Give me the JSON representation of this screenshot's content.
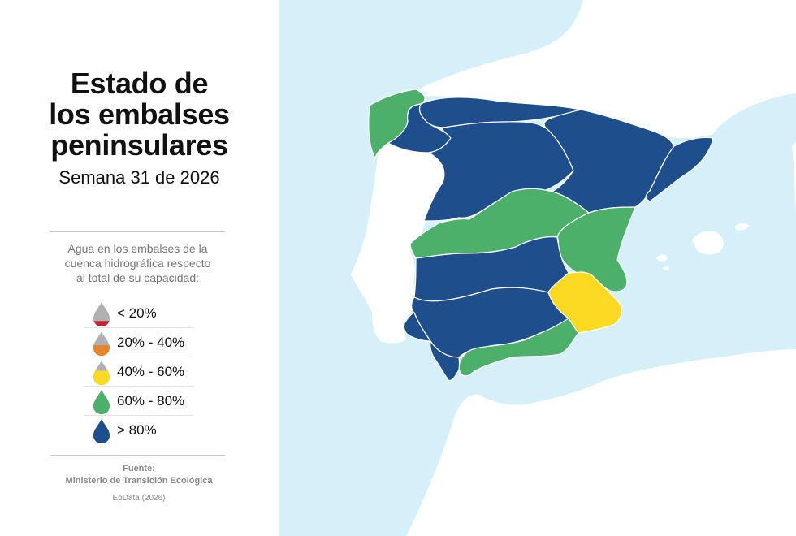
{
  "title_lines": [
    "Estado de",
    "los embalses",
    "peninsulares"
  ],
  "subtitle": "Semana 31 de 2026",
  "legend": {
    "description_lines": [
      "Agua en los embalses de la",
      "cuenca hidrográfica respecto",
      "al total de su capacidad:"
    ],
    "items": [
      {
        "label": "< 20%",
        "color": "#c0262c",
        "fill": 0.25
      },
      {
        "label": "20% - 40%",
        "color": "#e8842a",
        "fill": 0.45
      },
      {
        "label": "40% - 60%",
        "color": "#fcd922",
        "fill": 0.6
      },
      {
        "label": "60% - 80%",
        "color": "#4caf6a",
        "fill": 1.0
      },
      {
        "label": "> 80%",
        "color": "#1f4e8c",
        "fill": 1.0
      }
    ],
    "empty_color": "#b0b0b0"
  },
  "source": {
    "heading": "Fuente:",
    "name": "Ministerio de Transición Ecológica",
    "credit": "EpData (2026)"
  },
  "map": {
    "sea_color": "#d5f0f9",
    "neighbor_land_color": "#ffffff",
    "border_color": "#ffffff",
    "basins": [
      {
        "id": "galicia-costa",
        "category": "60% - 80%"
      },
      {
        "id": "cantabrico",
        "category": "> 80%"
      },
      {
        "id": "mino-sil",
        "category": "> 80%"
      },
      {
        "id": "duero",
        "category": "> 80%"
      },
      {
        "id": "ebro",
        "category": "> 80%"
      },
      {
        "id": "cuencas-internas-cataluna",
        "category": "> 80%"
      },
      {
        "id": "tajo",
        "category": "60% - 80%"
      },
      {
        "id": "jucar",
        "category": "60% - 80%"
      },
      {
        "id": "guadiana",
        "category": "> 80%"
      },
      {
        "id": "segura",
        "category": "40% - 60%"
      },
      {
        "id": "guadalquivir",
        "category": "> 80%"
      },
      {
        "id": "cuencas-mediterraneas-andaluzas",
        "category": "60% - 80%"
      },
      {
        "id": "tinto-odiel-piedras",
        "category": "> 80%"
      },
      {
        "id": "guadalete-barbate",
        "category": "> 80%"
      }
    ]
  }
}
